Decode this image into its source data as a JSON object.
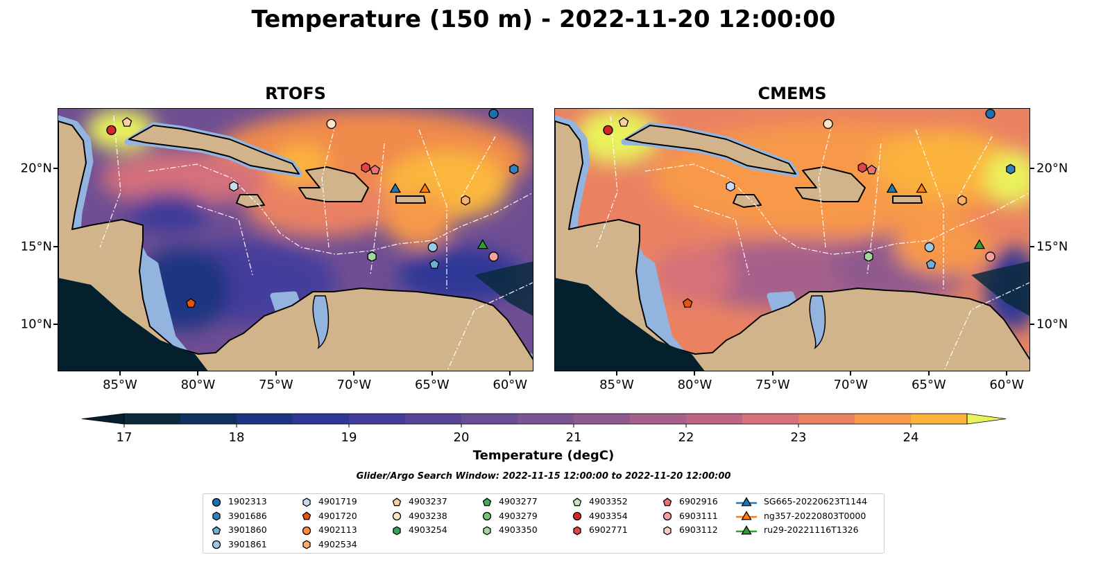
{
  "title": "Temperature (150 m) - 2022-11-20 12:00:00",
  "panels": [
    {
      "title": "RTOFS",
      "style": "rtofs"
    },
    {
      "title": "CMEMS",
      "style": "cmems"
    }
  ],
  "axes": {
    "lon_range": [
      -89.0,
      -58.5
    ],
    "lat_range": [
      7.0,
      23.87
    ],
    "lon_ticks": [
      {
        "value": -85,
        "label": "85°W"
      },
      {
        "value": -80,
        "label": "80°W"
      },
      {
        "value": -75,
        "label": "75°W"
      },
      {
        "value": -70,
        "label": "70°W"
      },
      {
        "value": -65,
        "label": "65°W"
      },
      {
        "value": -60,
        "label": "60°W"
      }
    ],
    "lat_ticks": [
      {
        "value": 20,
        "label": "20°N"
      },
      {
        "value": 15,
        "label": "15°N"
      },
      {
        "value": 10,
        "label": "10°N"
      }
    ]
  },
  "colorbar": {
    "label": "Temperature (degC)",
    "min": 17,
    "max": 24.5,
    "step": 0.5,
    "ticks": [
      "17",
      "18",
      "19",
      "20",
      "21",
      "22",
      "23",
      "24"
    ],
    "colors": [
      "#0c2a3c",
      "#10305e",
      "#1c3482",
      "#2f3796",
      "#453d9b",
      "#584598",
      "#694d95",
      "#7b5492",
      "#8f5a8e",
      "#a5608b",
      "#bd6585",
      "#d5717a",
      "#ea8262",
      "#f7994a",
      "#fbb33c"
    ],
    "extend_low": "#04202c",
    "extend_high": "#e9f25b"
  },
  "search_window": "Glider/Argo Search Window: 2022-11-15 12:00:00 to 2022-11-20 12:00:00",
  "markers": [
    {
      "label": "1902313",
      "shape": "circle",
      "color": "#1f6fad",
      "lon": -61.1,
      "lat": 23.55
    },
    {
      "label": "3901686",
      "shape": "hexagon",
      "color": "#3182bd",
      "lon": -59.8,
      "lat": 20.0
    },
    {
      "label": "3901860",
      "shape": "pentagon",
      "color": "#6baed6",
      "lon": -64.9,
      "lat": 13.9
    },
    {
      "label": "3901861",
      "shape": "circle",
      "color": "#9ecae1",
      "lon": -65.0,
      "lat": 15.0
    },
    {
      "label": "4901719",
      "shape": "hexagon",
      "color": "#c6dbef",
      "lon": -77.75,
      "lat": 18.9
    },
    {
      "label": "4901720",
      "shape": "pentagon",
      "color": "#e6550d",
      "lon": -80.5,
      "lat": 11.4
    },
    {
      "label": "4902113",
      "shape": "circle",
      "color": "#fd8d3c",
      "lon": null,
      "lat": null
    },
    {
      "label": "4902534",
      "shape": "hexagon",
      "color": "#fdae6b",
      "lon": -62.9,
      "lat": 18.0
    },
    {
      "label": "4903237",
      "shape": "pentagon",
      "color": "#fdd0a2",
      "lon": -84.6,
      "lat": 23.0
    },
    {
      "label": "4903238",
      "shape": "circle",
      "color": "#fde3c8",
      "lon": -71.5,
      "lat": 22.9
    },
    {
      "label": "4903254",
      "shape": "hexagon",
      "color": "#31a354",
      "lon": null,
      "lat": null
    },
    {
      "label": "4903277",
      "shape": "pentagon",
      "color": "#41ab5d",
      "lon": null,
      "lat": null
    },
    {
      "label": "4903279",
      "shape": "circle",
      "color": "#74c476",
      "lon": null,
      "lat": null
    },
    {
      "label": "4903350",
      "shape": "hexagon",
      "color": "#a1d99b",
      "lon": -68.9,
      "lat": 14.4
    },
    {
      "label": "4903352",
      "shape": "pentagon",
      "color": "#c7e9c0",
      "lon": null,
      "lat": null
    },
    {
      "label": "4903354",
      "shape": "circle",
      "color": "#d62728",
      "lon": -85.6,
      "lat": 22.5
    },
    {
      "label": "6902771",
      "shape": "hexagon",
      "color": "#e04444",
      "lon": -69.3,
      "lat": 20.1
    },
    {
      "label": "6902916",
      "shape": "pentagon",
      "color": "#ee7275",
      "lon": -68.7,
      "lat": 19.95
    },
    {
      "label": "6903111",
      "shape": "circle",
      "color": "#f4a09c",
      "lon": -61.1,
      "lat": 14.4
    },
    {
      "label": "6903112",
      "shape": "hexagon",
      "color": "#fcc9c5",
      "lon": null,
      "lat": null
    },
    {
      "label": "SG665-20220623T1144",
      "shape": "triangle",
      "color": "#1f77b4",
      "lon": -67.4,
      "lat": 18.7
    },
    {
      "label": "ng357-20220803T0000",
      "shape": "triangle",
      "color": "#ff7f0e",
      "lon": -65.5,
      "lat": 18.7
    },
    {
      "label": "ru29-20221116T1326",
      "shape": "triangle",
      "color": "#2ca02c",
      "lon": -61.8,
      "lat": 15.1
    }
  ]
}
